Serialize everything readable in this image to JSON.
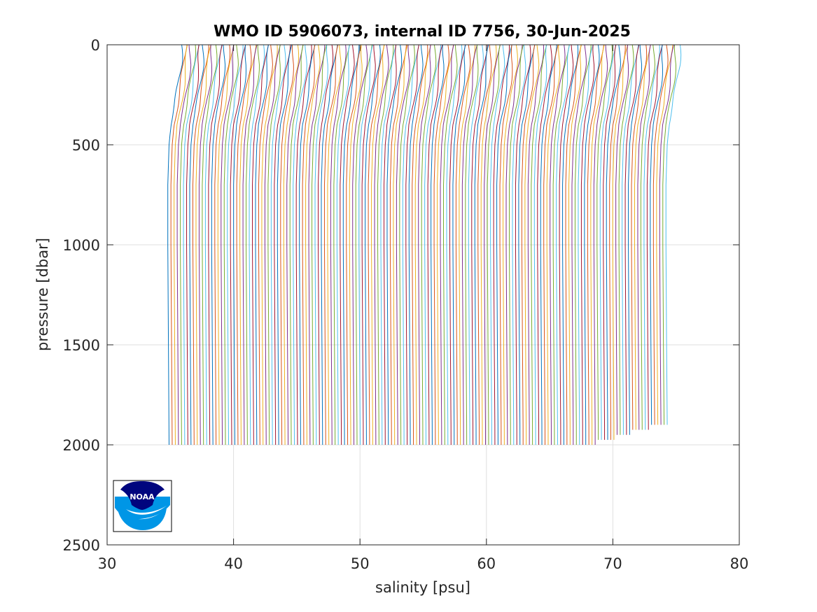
{
  "chart_data": {
    "type": "line",
    "title": "WMO ID 5906073, internal ID 7756, 30-Jun-2025",
    "xlabel": "salinity [psu]",
    "ylabel": "pressure [dbar]",
    "xlim": [
      30,
      80
    ],
    "ylim": [
      0,
      2500
    ],
    "y_reversed": true,
    "grid": true,
    "x_ticks": [
      30,
      40,
      50,
      60,
      70,
      80
    ],
    "y_ticks": [
      0,
      500,
      1000,
      1500,
      2000,
      2500
    ],
    "x_tick_labels": [
      "30",
      "40",
      "50",
      "60",
      "70",
      "80"
    ],
    "y_tick_labels": [
      "0",
      "500",
      "1000",
      "1500",
      "2000",
      "2500"
    ],
    "series_rendering": "waterfall: each successive profile offset by about 0.25 psu",
    "profile_count": 160,
    "first_profile": {
      "pressure": [
        0,
        100,
        200,
        300,
        400,
        500,
        700,
        1000,
        1500,
        2000
      ],
      "salinity": [
        35.9,
        35.8,
        35.6,
        35.35,
        35.05,
        34.9,
        34.8,
        34.8,
        34.85,
        34.9
      ]
    },
    "last_profile": {
      "pressure": [
        0,
        100,
        200,
        300,
        400,
        500,
        700,
        1000,
        1500,
        1900
      ],
      "salinity": [
        75.3,
        75.2,
        75.0,
        74.75,
        74.45,
        74.3,
        74.2,
        74.2,
        74.25,
        74.3
      ]
    },
    "series_colors": [
      "#0072bd",
      "#d95319",
      "#edb120",
      "#7e2f8e",
      "#77ac30",
      "#4dbeee",
      "#a2142f"
    ]
  },
  "logo": {
    "text": "NOAA",
    "colors": {
      "navy": "#00057e",
      "blue": "#0096e6",
      "white": "#ffffff"
    }
  }
}
